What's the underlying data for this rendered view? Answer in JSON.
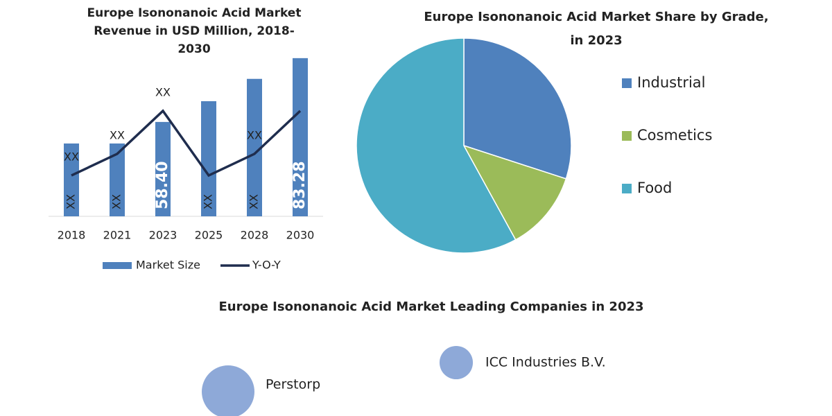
{
  "chart_data": [
    {
      "type": "bar",
      "title": "Europe Isononanoic Acid Market Revenue in USD Million, 2018-2030",
      "categories": [
        "2018",
        "2021",
        "2023",
        "2025",
        "2028",
        "2030"
      ],
      "ylim": [
        21.6,
        90
      ],
      "y2lim": [
        0,
        100
      ],
      "series": [
        {
          "name": "Market Size",
          "color": "#4f81bd",
          "values": [
            50.0,
            50.0,
            58.4,
            66.5,
            75.2,
            83.28
          ],
          "value_labels": [
            "XX",
            "XX",
            "58.40",
            "XX",
            "XX",
            "83.28"
          ]
        },
        {
          "name": "Y-O-Y",
          "type": "line",
          "axis": "y2",
          "color": "#1f2d4e",
          "values": [
            23.3,
            35.6,
            60.1,
            23.3,
            35.6,
            60.1
          ],
          "value_labels": [
            "XX",
            "XX",
            "XX",
            null,
            "XX",
            null
          ]
        }
      ]
    },
    {
      "type": "pie",
      "title": "Europe Isononanoic Acid Market Share by Grade, in 2023",
      "categories": [
        "Industrial",
        "Cosmetics",
        "Food"
      ],
      "values": [
        30,
        12,
        58
      ],
      "colors": [
        "#4f81bd",
        "#9bbb59",
        "#4bacc6"
      ]
    },
    {
      "type": "bubble",
      "title": "Europe Isononanoic Acid Market Leading Companies in 2023",
      "categories": [
        "Perstorp",
        "ICC Industries B.V."
      ],
      "values": [
        100,
        40
      ],
      "color": "#8ea9d8"
    }
  ]
}
